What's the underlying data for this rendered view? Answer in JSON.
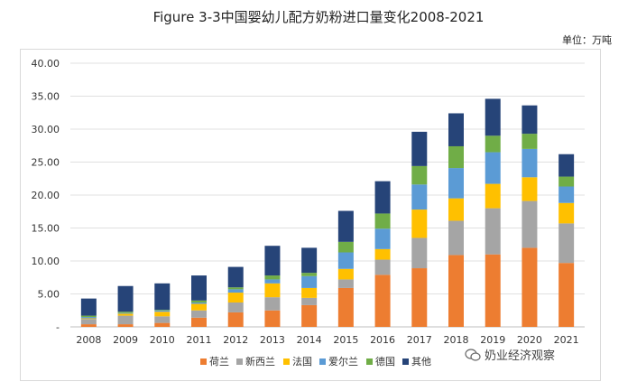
{
  "title": "Figure 3-3中国婴幼儿配方奶粉进口量变化2008-2021",
  "unit_label": "单位：万吨",
  "watermark": "奶业经济观察",
  "chart_data": {
    "type": "bar",
    "stacked": true,
    "ylim": [
      0,
      40
    ],
    "yticks": [
      "40.00",
      "35.00",
      "30.00",
      "25.00",
      "20.00",
      "15.00",
      "10.00",
      "5.00",
      "-"
    ],
    "ytick_values": [
      40,
      35,
      30,
      25,
      20,
      15,
      10,
      5,
      0
    ],
    "categories": [
      "2008",
      "2009",
      "2010",
      "2011",
      "2012",
      "2013",
      "2014",
      "2015",
      "2016",
      "2017",
      "2018",
      "2019",
      "2020",
      "2021"
    ],
    "series": [
      {
        "name": "荷兰",
        "color": "#ED7D31",
        "values": [
          0.4,
          0.4,
          0.6,
          1.4,
          2.2,
          2.5,
          3.3,
          5.9,
          7.9,
          8.9,
          10.9,
          11.0,
          12.0,
          9.7
        ]
      },
      {
        "name": "新西兰",
        "color": "#A5A5A5",
        "values": [
          0.8,
          1.3,
          1.0,
          1.1,
          1.5,
          2.0,
          1.1,
          1.3,
          2.3,
          4.6,
          5.2,
          7.0,
          7.1,
          6.0
        ]
      },
      {
        "name": "法国",
        "color": "#FFC000",
        "values": [
          0.1,
          0.3,
          0.7,
          1.0,
          1.5,
          2.1,
          1.5,
          1.6,
          1.6,
          4.3,
          3.4,
          3.7,
          3.6,
          3.1
        ]
      },
      {
        "name": "爱尔兰",
        "color": "#5B9BD5",
        "values": [
          0.2,
          0.1,
          0.2,
          0.2,
          0.5,
          0.6,
          1.8,
          2.5,
          3.1,
          3.8,
          4.6,
          4.8,
          4.3,
          2.5
        ]
      },
      {
        "name": "德国",
        "color": "#70AD47",
        "values": [
          0.2,
          0.2,
          0.1,
          0.3,
          0.3,
          0.6,
          0.5,
          1.6,
          2.3,
          2.8,
          3.3,
          2.5,
          2.3,
          1.5
        ]
      },
      {
        "name": "其他",
        "color": "#264478",
        "values": [
          2.6,
          3.9,
          4.0,
          3.8,
          3.1,
          4.5,
          3.8,
          4.7,
          4.9,
          5.2,
          5.0,
          5.6,
          4.3,
          3.4
        ]
      }
    ]
  }
}
